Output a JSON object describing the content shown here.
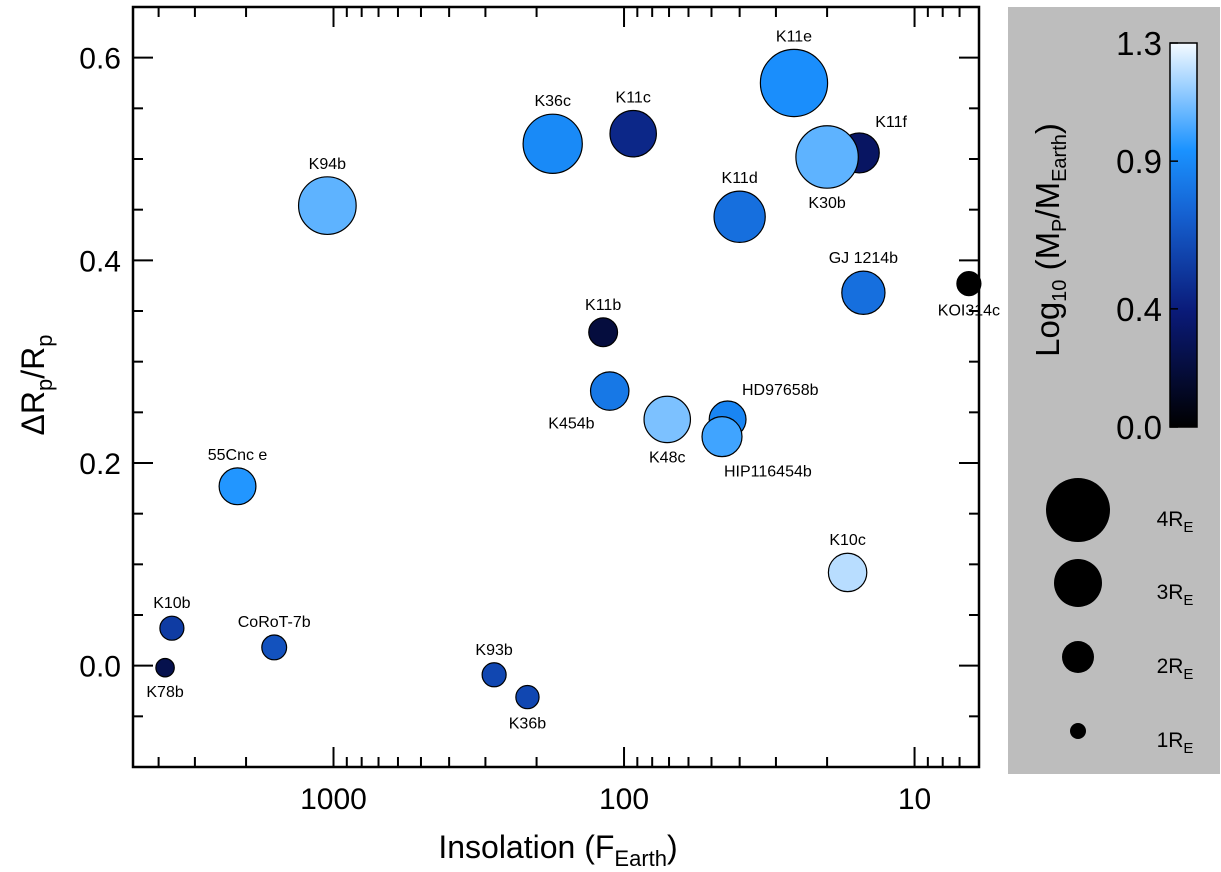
{
  "chart_data": {
    "type": "scatter",
    "x_scale": "log",
    "x_reversed": true,
    "xlim": [
      4900,
      6.0
    ],
    "ylim": [
      -0.1,
      0.65
    ],
    "xlabel": {
      "main": "Insolation (F",
      "sub": "Earth",
      "tail": ")"
    },
    "ylabel": {
      "pre": "ΔR",
      "sub1": "p",
      "mid": "/R",
      "sub2": "p"
    },
    "x_ticks": [
      {
        "value": 1000,
        "label": "1000"
      },
      {
        "value": 100,
        "label": "100"
      },
      {
        "value": 10,
        "label": "10"
      }
    ],
    "y_ticks": [
      {
        "value": 0.0,
        "label": "0.0"
      },
      {
        "value": 0.2,
        "label": "0.2"
      },
      {
        "value": 0.4,
        "label": "0.4"
      },
      {
        "value": 0.6,
        "label": "0.6"
      }
    ],
    "colorbar": {
      "label": {
        "pre": "Log",
        "sub1": "10",
        "mid": " (M",
        "sub2": "P",
        "mid2": "/M",
        "sub3": "Earth",
        "tail": ")"
      },
      "range": [
        0.0,
        1.3
      ],
      "ticks": [
        {
          "value": 1.3,
          "label": "1.3"
        },
        {
          "value": 0.9,
          "label": "0.9"
        },
        {
          "value": 0.4,
          "label": "0.4"
        },
        {
          "value": 0.0,
          "label": "0.0"
        }
      ]
    },
    "size_legend": [
      {
        "radius_earth": 4,
        "label": "4R",
        "sub": "E"
      },
      {
        "radius_earth": 3,
        "label": "3R",
        "sub": "E"
      },
      {
        "radius_earth": 2,
        "label": "2R",
        "sub": "E"
      },
      {
        "radius_earth": 1,
        "label": "1R",
        "sub": "E"
      }
    ],
    "points": [
      {
        "name": "K11e",
        "insolation": 26,
        "dr": 0.575,
        "logm": 0.92,
        "radius_earth": 4.2,
        "label_pos": "above"
      },
      {
        "name": "K11c",
        "insolation": 93,
        "dr": 0.525,
        "logm": 0.45,
        "radius_earth": 2.9,
        "label_pos": "above"
      },
      {
        "name": "K36c",
        "insolation": 176,
        "dr": 0.515,
        "logm": 0.9,
        "radius_earth": 3.7,
        "label_pos": "above"
      },
      {
        "name": "K11f",
        "insolation": 15.5,
        "dr": 0.506,
        "logm": 0.32,
        "radius_earth": 2.5,
        "label_pos": "above-right"
      },
      {
        "name": "K30b",
        "insolation": 20,
        "dr": 0.502,
        "logm": 1.05,
        "radius_earth": 3.9,
        "label_pos": "below"
      },
      {
        "name": "K94b",
        "insolation": 1050,
        "dr": 0.454,
        "logm": 1.05,
        "radius_earth": 3.6,
        "label_pos": "above"
      },
      {
        "name": "K11d",
        "insolation": 40,
        "dr": 0.443,
        "logm": 0.78,
        "radius_earth": 3.2,
        "label_pos": "above"
      },
      {
        "name": "GJ 1214b",
        "insolation": 15,
        "dr": 0.368,
        "logm": 0.78,
        "radius_earth": 2.7,
        "label_pos": "above"
      },
      {
        "name": "KOI314c",
        "insolation": 6.5,
        "dr": 0.377,
        "logm": 0.0,
        "radius_earth": 1.5,
        "label_pos": "below"
      },
      {
        "name": "K11b",
        "insolation": 118,
        "dr": 0.329,
        "logm": 0.2,
        "radius_earth": 1.8,
        "label_pos": "above"
      },
      {
        "name": "K454b",
        "insolation": 112,
        "dr": 0.271,
        "logm": 0.82,
        "radius_earth": 2.4,
        "label_pos": "below-left"
      },
      {
        "name": "HD97658b",
        "insolation": 44,
        "dr": 0.243,
        "logm": 0.88,
        "radius_earth": 2.3,
        "label_pos": "above-right"
      },
      {
        "name": "K48c",
        "insolation": 71,
        "dr": 0.243,
        "logm": 1.1,
        "radius_earth": 2.9,
        "label_pos": "below"
      },
      {
        "name": "HIP116454b",
        "insolation": 46,
        "dr": 0.226,
        "logm": 1.0,
        "radius_earth": 2.5,
        "label_pos": "below-right"
      },
      {
        "name": "55Cnc e",
        "insolation": 2140,
        "dr": 0.177,
        "logm": 0.95,
        "radius_earth": 2.3,
        "label_pos": "above"
      },
      {
        "name": "K10c",
        "insolation": 17,
        "dr": 0.092,
        "logm": 1.2,
        "radius_earth": 2.4,
        "label_pos": "above"
      },
      {
        "name": "K10b",
        "insolation": 3600,
        "dr": 0.037,
        "logm": 0.55,
        "radius_earth": 1.5,
        "label_pos": "above"
      },
      {
        "name": "CoRoT-7b",
        "insolation": 1600,
        "dr": 0.018,
        "logm": 0.65,
        "radius_earth": 1.55,
        "label_pos": "above"
      },
      {
        "name": "K78b",
        "insolation": 3800,
        "dr": -0.002,
        "logm": 0.25,
        "radius_earth": 1.15,
        "label_pos": "below"
      },
      {
        "name": "K93b",
        "insolation": 280,
        "dr": -0.009,
        "logm": 0.6,
        "radius_earth": 1.5,
        "label_pos": "above"
      },
      {
        "name": "K36b",
        "insolation": 215,
        "dr": -0.031,
        "logm": 0.6,
        "radius_earth": 1.45,
        "label_pos": "below"
      }
    ]
  }
}
